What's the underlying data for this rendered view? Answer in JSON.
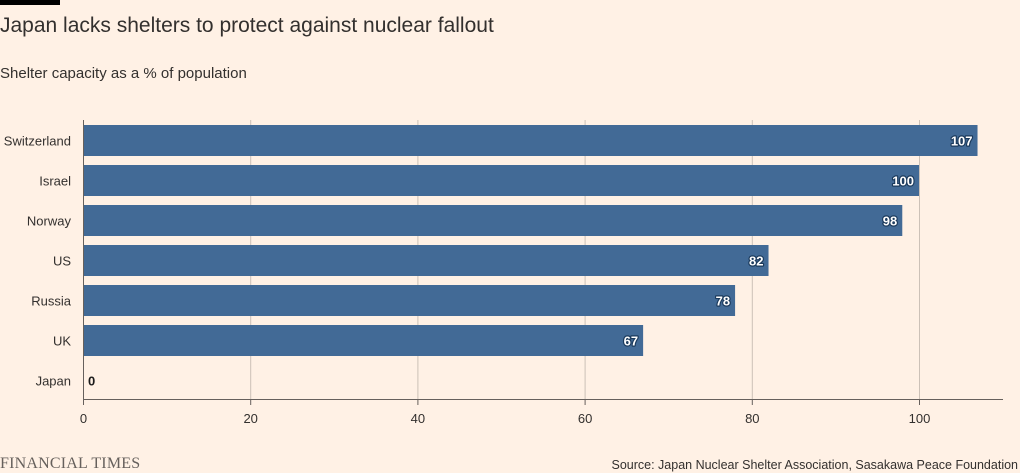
{
  "header": {
    "title": "Japan lacks shelters to protect against nuclear fallout",
    "subtitle": "Shelter capacity as a % of population"
  },
  "footer": {
    "brand": "FINANCIAL TIMES",
    "source": "Source: Japan Nuclear Shelter Association, Sasakawa Peace Foundation"
  },
  "colors": {
    "background": "#fff1e5",
    "bar": "#426a96",
    "grid": "#ccc1b7",
    "text": "#33302e"
  },
  "chart_data": {
    "type": "bar",
    "orientation": "horizontal",
    "title": "Japan lacks shelters to protect against nuclear fallout",
    "subtitle": "Shelter capacity as a % of population",
    "xlabel": "",
    "ylabel": "",
    "categories": [
      "Switzerland",
      "Israel",
      "Norway",
      "US",
      "Russia",
      "UK",
      "Japan"
    ],
    "values": [
      107,
      100,
      98,
      82,
      78,
      67,
      0
    ],
    "value_labels": [
      "107",
      "100",
      "98",
      "82",
      "78",
      "67",
      "0"
    ],
    "xlim": [
      0,
      110
    ],
    "xticks": [
      0,
      20,
      40,
      60,
      80,
      100
    ],
    "xtick_labels": [
      "0",
      "20",
      "40",
      "60",
      "80",
      "100"
    ],
    "grid": true
  }
}
